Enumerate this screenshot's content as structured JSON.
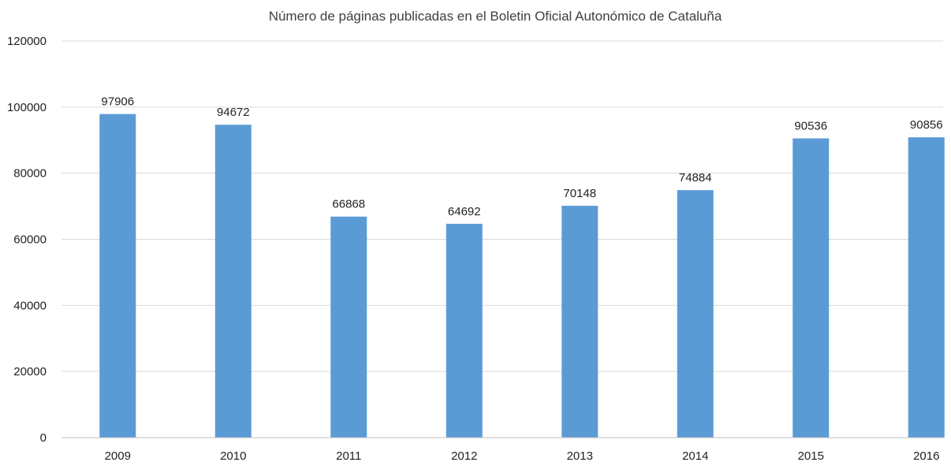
{
  "chart_data": {
    "type": "bar",
    "title": "Número de páginas publicadas en el Boletin Oficial Autonómico de Cataluña",
    "xlabel": "",
    "ylabel": "",
    "categories": [
      "2009",
      "2010",
      "2011",
      "2012",
      "2013",
      "2014",
      "2015",
      "2016"
    ],
    "values": [
      97906,
      94672,
      66868,
      64692,
      70148,
      74884,
      90536,
      90856
    ],
    "value_labels": [
      "97906",
      "94672",
      "66868",
      "64692",
      "70148",
      "74884",
      "90536",
      "90856"
    ],
    "ylim": [
      0,
      120000
    ],
    "yticks": [
      0,
      20000,
      40000,
      60000,
      80000,
      100000,
      120000
    ],
    "ytick_labels": [
      "0",
      "20000",
      "40000",
      "60000",
      "80000",
      "100000",
      "120000"
    ],
    "grid": true,
    "legend": "none",
    "colors": {
      "bar": "#5b9bd5",
      "gridline": "#d9d9d9",
      "text": "#222222"
    }
  }
}
